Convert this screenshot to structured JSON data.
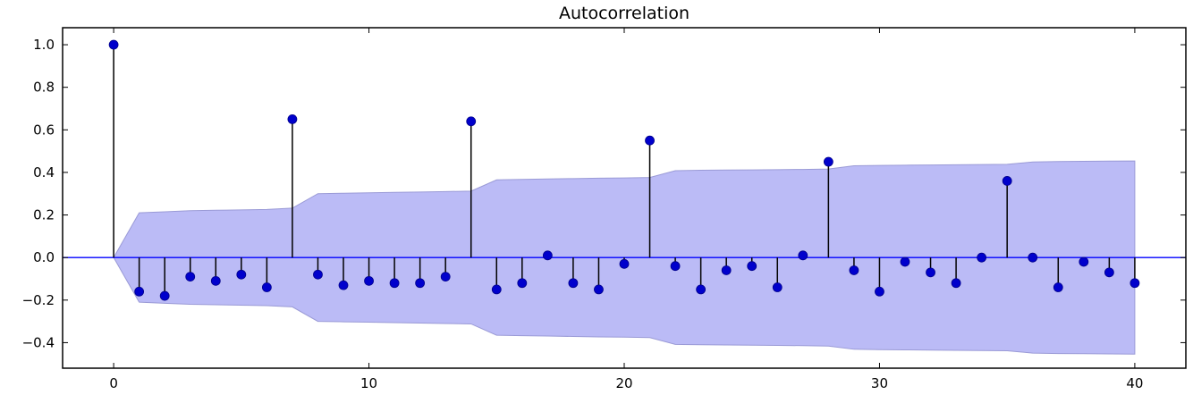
{
  "chart_data": {
    "type": "stem",
    "title": "Autocorrelation",
    "xlabel": "",
    "ylabel": "",
    "xlim": [
      -2,
      42
    ],
    "ylim": [
      -0.52,
      1.08
    ],
    "xticks": [
      0,
      10,
      20,
      30,
      40
    ],
    "xtick_labels": [
      "0",
      "10",
      "20",
      "30",
      "40"
    ],
    "yticks": [
      -0.4,
      -0.2,
      0.0,
      0.2,
      0.4,
      0.6,
      0.8,
      1.0
    ],
    "ytick_labels": [
      "−0.4",
      "−0.2",
      "0.0",
      "0.2",
      "0.4",
      "0.6",
      "0.8",
      "1.0"
    ],
    "grid": false,
    "legend": "none",
    "colors": {
      "markers": "#0000cc",
      "stems": "#000000",
      "zero_line": "#0000ff",
      "confidence_band": "#bbbbf6",
      "confidence_band_edge": "#9a9ad6"
    },
    "lags": [
      0,
      1,
      2,
      3,
      4,
      5,
      6,
      7,
      8,
      9,
      10,
      11,
      12,
      13,
      14,
      15,
      16,
      17,
      18,
      19,
      20,
      21,
      22,
      23,
      24,
      25,
      26,
      27,
      28,
      29,
      30,
      31,
      32,
      33,
      34,
      35,
      36,
      37,
      38,
      39,
      40
    ],
    "acf": [
      1.0,
      -0.16,
      -0.18,
      -0.09,
      -0.11,
      -0.08,
      -0.14,
      0.65,
      -0.08,
      -0.13,
      -0.11,
      -0.12,
      -0.12,
      -0.09,
      0.64,
      -0.15,
      -0.12,
      0.01,
      -0.12,
      -0.15,
      -0.03,
      0.55,
      -0.04,
      -0.15,
      -0.06,
      -0.04,
      -0.14,
      0.01,
      0.45,
      -0.06,
      -0.16,
      -0.02,
      -0.07,
      -0.12,
      0.0,
      0.36,
      0.0,
      -0.14,
      -0.02,
      -0.07,
      -0.12
    ],
    "confidence_interval": [
      0.0,
      0.21,
      0.215,
      0.22,
      0.222,
      0.224,
      0.226,
      0.232,
      0.3,
      0.302,
      0.304,
      0.306,
      0.308,
      0.31,
      0.312,
      0.365,
      0.367,
      0.369,
      0.371,
      0.373,
      0.374,
      0.376,
      0.408,
      0.41,
      0.411,
      0.412,
      0.413,
      0.414,
      0.416,
      0.431,
      0.433,
      0.434,
      0.435,
      0.436,
      0.437,
      0.438,
      0.449,
      0.451,
      0.452,
      0.453,
      0.454
    ]
  }
}
